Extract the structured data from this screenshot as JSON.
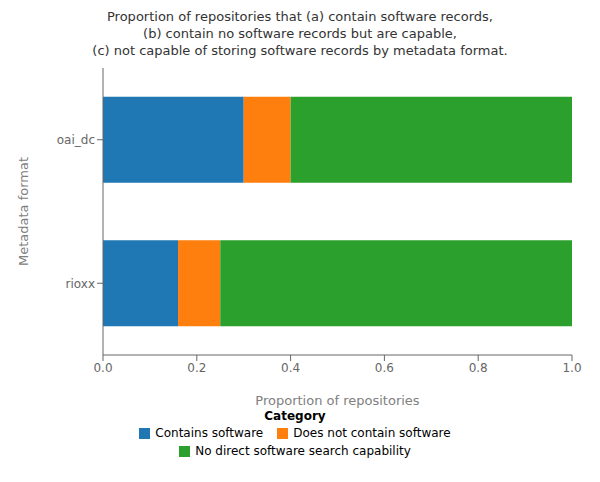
{
  "chart_data": {
    "type": "bar",
    "orientation": "horizontal",
    "stacked": true,
    "title": "Proportion of repositories that (a) contain software records,\n(b) contain no software records but are capable,\n(c) not capable of storing software records by metadata format.",
    "xlabel": "Proportion of repositories",
    "ylabel": "Metadata format",
    "categories": [
      "oai_dc",
      "rioxx"
    ],
    "series": [
      {
        "name": "Contains software",
        "color": "#1f77b4",
        "values": [
          0.3,
          0.16
        ]
      },
      {
        "name": "Does not contain software",
        "color": "#ff7f0e",
        "values": [
          0.1,
          0.09
        ]
      },
      {
        "name": "No direct software search capability",
        "color": "#2ca02c",
        "values": [
          0.6,
          0.75
        ]
      }
    ],
    "xlim": [
      0.0,
      1.0
    ],
    "xticks": [
      {
        "value": 0.0,
        "label": "0.0"
      },
      0.2,
      0.4,
      0.6,
      0.8,
      {
        "value": 1.0,
        "label": "1.0"
      }
    ],
    "legend_title": "Category",
    "legend": "bottom",
    "grid": false
  }
}
